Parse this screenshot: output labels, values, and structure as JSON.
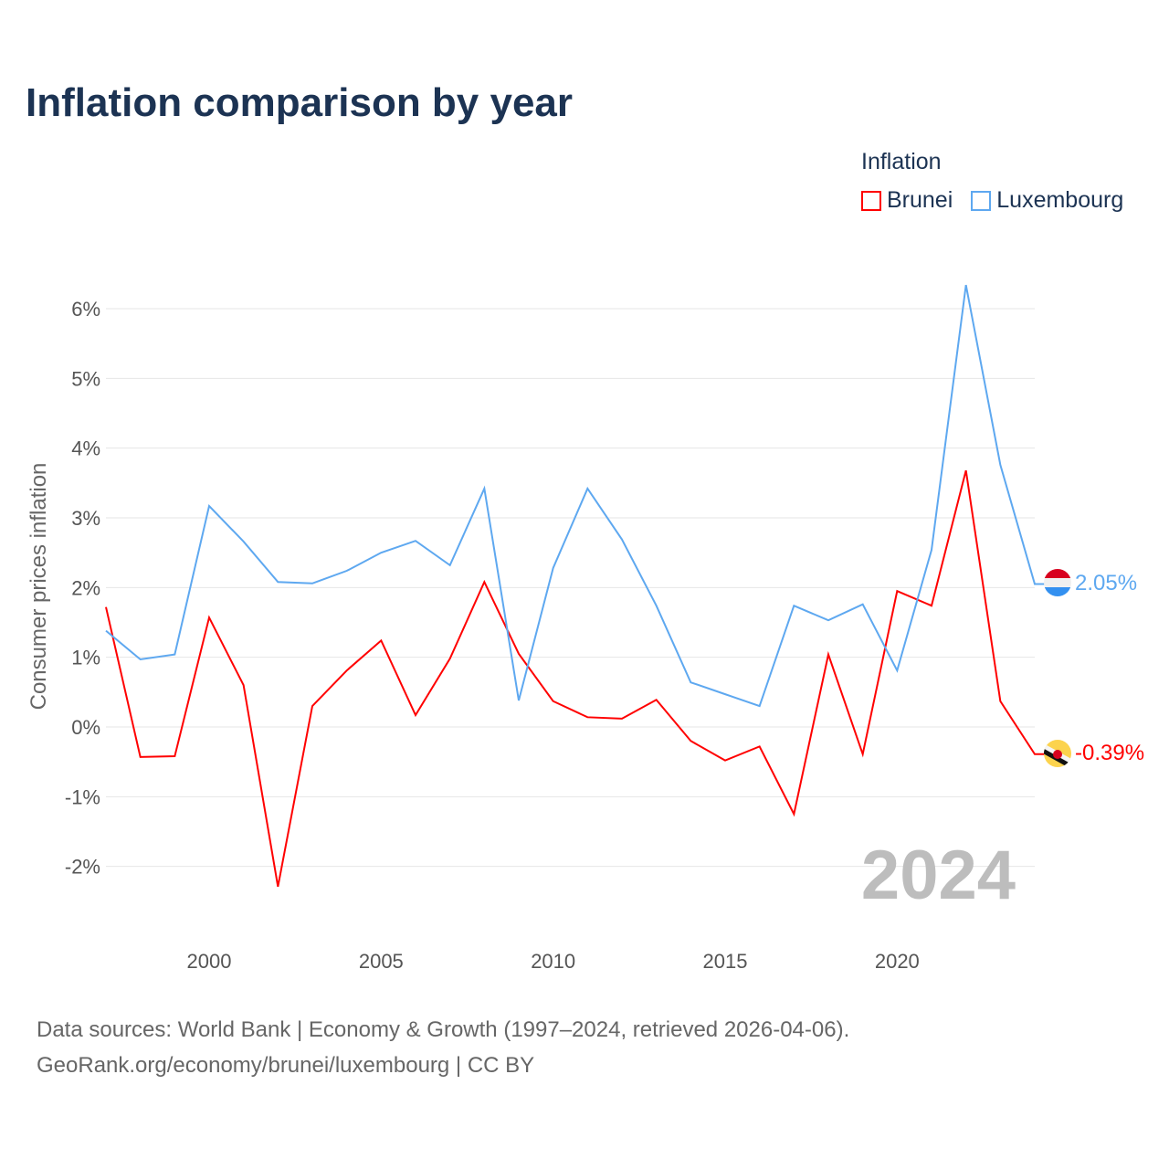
{
  "title": "Inflation comparison by year",
  "legend": {
    "title": "Inflation",
    "items": [
      {
        "name": "Brunei",
        "color": "#ff0000"
      },
      {
        "name": "Luxembourg",
        "color": "#5ea8f0"
      }
    ]
  },
  "source": {
    "line1": "Data sources: World Bank | Economy & Growth (1997–2024, retrieved 2026-04-06).",
    "line2": "GeoRank.org/economy/brunei/luxembourg | CC BY"
  },
  "chart_data": {
    "type": "line",
    "ylabel": "Consumer prices inflation",
    "ylim": [
      -2.9,
      6.7
    ],
    "yticks": [
      -2,
      -1,
      0,
      1,
      2,
      3,
      4,
      5,
      6
    ],
    "ytick_labels": [
      "-2%",
      "-1%",
      "0%",
      "1%",
      "2%",
      "3%",
      "4%",
      "5%",
      "6%"
    ],
    "xlim": [
      1997,
      2024
    ],
    "xticks": [
      2000,
      2005,
      2010,
      2015,
      2020
    ],
    "xtick_labels": [
      "2000",
      "2005",
      "2010",
      "2015",
      "2020"
    ],
    "year_watermark": "2024",
    "x": [
      1997,
      1998,
      1999,
      2000,
      2001,
      2002,
      2003,
      2004,
      2005,
      2006,
      2007,
      2008,
      2009,
      2010,
      2011,
      2012,
      2013,
      2014,
      2015,
      2016,
      2017,
      2018,
      2019,
      2020,
      2021,
      2022,
      2023,
      2024
    ],
    "series": [
      {
        "name": "Brunei",
        "color": "#ff0000",
        "end_label": "-0.39%",
        "values": [
          1.72,
          -0.43,
          -0.42,
          1.57,
          0.6,
          -2.29,
          0.3,
          0.81,
          1.24,
          0.17,
          0.98,
          2.08,
          1.05,
          0.37,
          0.14,
          0.12,
          0.39,
          -0.2,
          -0.48,
          -0.28,
          -1.25,
          1.04,
          -0.39,
          1.95,
          1.74,
          3.68,
          0.37,
          -0.39
        ]
      },
      {
        "name": "Luxembourg",
        "color": "#5ea8f0",
        "end_label": "2.05%",
        "values": [
          1.38,
          0.97,
          1.04,
          3.17,
          2.66,
          2.08,
          2.06,
          2.24,
          2.5,
          2.67,
          2.32,
          3.42,
          0.38,
          2.28,
          3.42,
          2.69,
          1.74,
          0.64,
          0.47,
          0.3,
          1.74,
          1.53,
          1.76,
          0.81,
          2.54,
          6.34,
          3.76,
          2.05
        ]
      }
    ]
  }
}
